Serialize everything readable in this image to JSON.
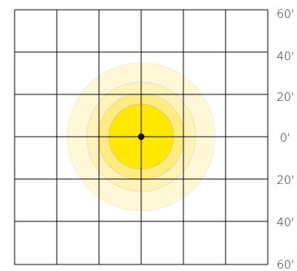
{
  "diagram": {
    "colors": {
      "background": "#ffffff",
      "grid_line": "#111111",
      "illuminance_outer": "#fff7d6",
      "illuminance_mid": "#fff3b8",
      "illuminance_inner": "#ffec80",
      "illuminance_core": "#ffe800",
      "ring_stroke": "#e6dcc0",
      "center_point": "#111111",
      "label_text": "#222222"
    },
    "grid": {
      "columns": 6,
      "rows": 6
    },
    "center_marker_icon": "center-point-icon",
    "scale_labels": [
      "60'",
      "40'",
      "20'",
      "0'",
      "20'",
      "40'",
      "60'"
    ]
  }
}
